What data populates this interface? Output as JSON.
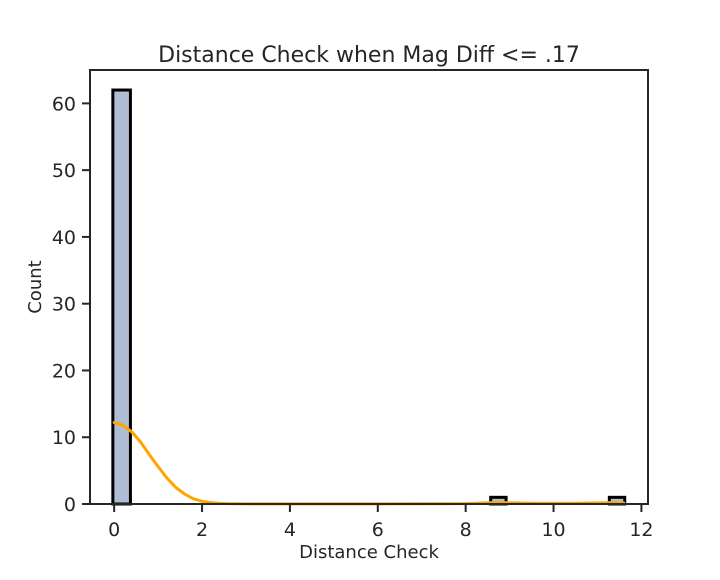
{
  "chart_data": {
    "type": "bar",
    "title": "Distance Check when Mag Diff <= .17",
    "xlabel": "Distance Check",
    "ylabel": "Count",
    "xlim": [
      -0.55,
      12.15
    ],
    "ylim": [
      0,
      65
    ],
    "x_ticks": [
      0,
      2,
      4,
      6,
      8,
      10,
      12
    ],
    "y_ticks": [
      0,
      10,
      20,
      30,
      40,
      50,
      60
    ],
    "grid": false,
    "bins": [
      {
        "x0": -0.03,
        "x1": 0.37,
        "count": 62
      },
      {
        "x0": 8.57,
        "x1": 8.92,
        "count": 1
      },
      {
        "x0": 11.27,
        "x1": 11.62,
        "count": 1
      }
    ],
    "kde": {
      "color": "#FFA500",
      "x": [
        0,
        0.2,
        0.4,
        0.6,
        0.8,
        1.0,
        1.2,
        1.4,
        1.6,
        1.8,
        2.0,
        2.2,
        2.4,
        2.6,
        3.0,
        4.0,
        6.0,
        8.0,
        8.7,
        9.5,
        10.5,
        11.4,
        11.6
      ],
      "y": [
        12.2,
        11.8,
        10.8,
        9.3,
        7.4,
        5.6,
        3.9,
        2.5,
        1.5,
        0.8,
        0.4,
        0.2,
        0.1,
        0.05,
        0.02,
        0.01,
        0.01,
        0.05,
        0.22,
        0.12,
        0.12,
        0.2,
        0.15
      ]
    },
    "colors": {
      "bar_fill": "#B0BCD4",
      "bar_edge": "#000000",
      "axis": "#262626"
    }
  }
}
